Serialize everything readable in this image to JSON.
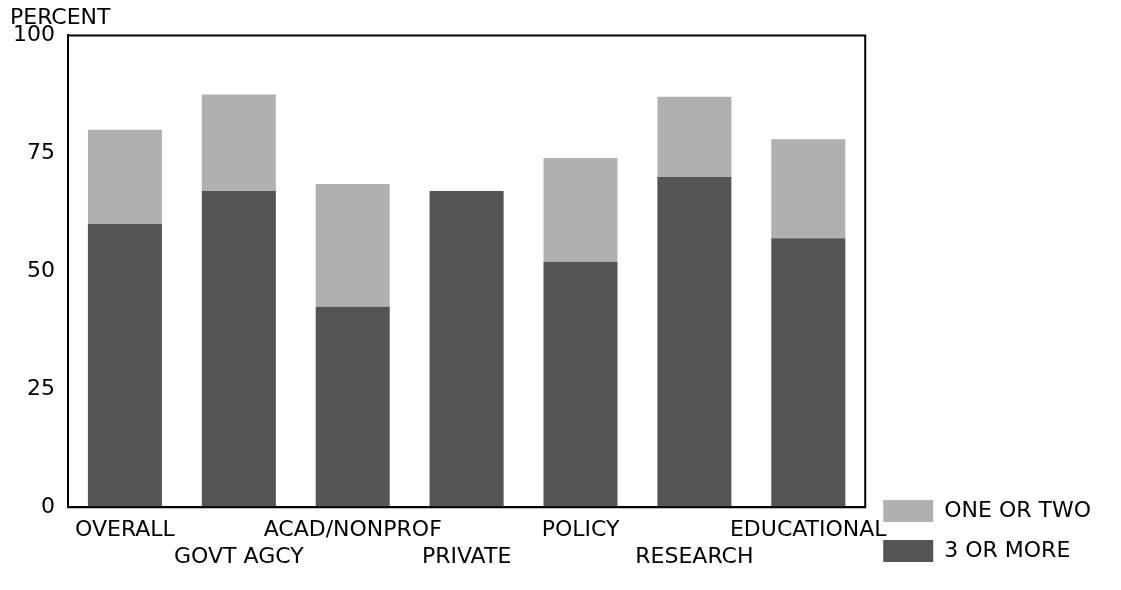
{
  "chart_data": {
    "type": "bar",
    "ylabel": "PERCENT",
    "stacked": true,
    "categories": [
      "OVERALL",
      "GOVT AGCY",
      "ACAD/NONPROF",
      "PRIVATE",
      "POLICY",
      "RESEARCH",
      "EDUCATIONAL"
    ],
    "series": [
      {
        "name": "3 OR MORE",
        "color": "#555555",
        "values": [
          60,
          67,
          42.5,
          67,
          52,
          70,
          57
        ]
      },
      {
        "name": "ONE OR TWO",
        "color": "#b0b0b0",
        "values": [
          20,
          20.5,
          26,
          0,
          22,
          17,
          21
        ]
      }
    ],
    "ylim": [
      0,
      100
    ],
    "yticks": [
      0,
      25,
      50,
      75,
      100
    ],
    "grid": false,
    "legend": "bottom right"
  }
}
